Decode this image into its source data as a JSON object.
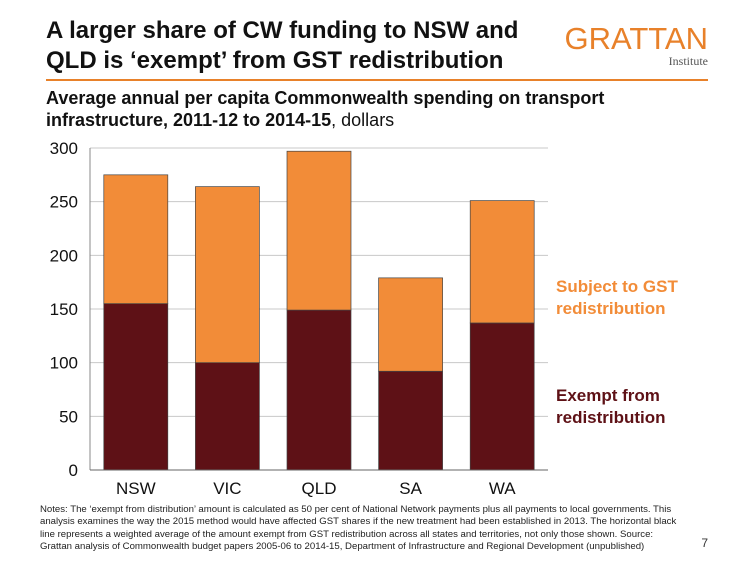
{
  "slide": {
    "title": "A larger share of CW funding to NSW and QLD is ‘exempt’ from GST redistribution",
    "page_number": "7",
    "notes": "Notes: The ‘exempt from distribution’ amount is calculated as 50 per cent of National Network payments plus all payments to local governments. This analysis examines the way the 2015 method would have affected GST shares if the new treatment had been established in 2013. The horizontal black line represents a weighted average of the amount exempt from GST redistribution across all states and territories, not only those shown. Source: Grattan analysis of Commonwealth budget papers 2005-06 to 2014-15, Department of Infrastructure and Regional Development (unpublished)"
  },
  "logo": {
    "name": "GRATTAN",
    "sub": "Institute"
  },
  "colors": {
    "accent": "#E8812A",
    "exempt": "#5E1116",
    "subject": "#F28C38"
  },
  "chart_data": {
    "type": "bar",
    "stacked": true,
    "title_bold": "Average annual per capita Commonwealth spending on transport infrastructure, 2011-12 to 2014-15",
    "title_rest": ", dollars",
    "categories": [
      "NSW",
      "VIC",
      "QLD",
      "SA",
      "WA"
    ],
    "series": [
      {
        "name": "Exempt from redistribution",
        "color": "#5E1116",
        "values": [
          155,
          100,
          149,
          92,
          137
        ]
      },
      {
        "name": "Subject to GST redistribution",
        "color": "#F28C38",
        "values": [
          120,
          164,
          148,
          87,
          114
        ]
      }
    ],
    "ylim": [
      0,
      300
    ],
    "yticks": [
      0,
      50,
      100,
      150,
      200,
      250,
      300
    ],
    "grid": true,
    "legend": "right, inline labels"
  }
}
